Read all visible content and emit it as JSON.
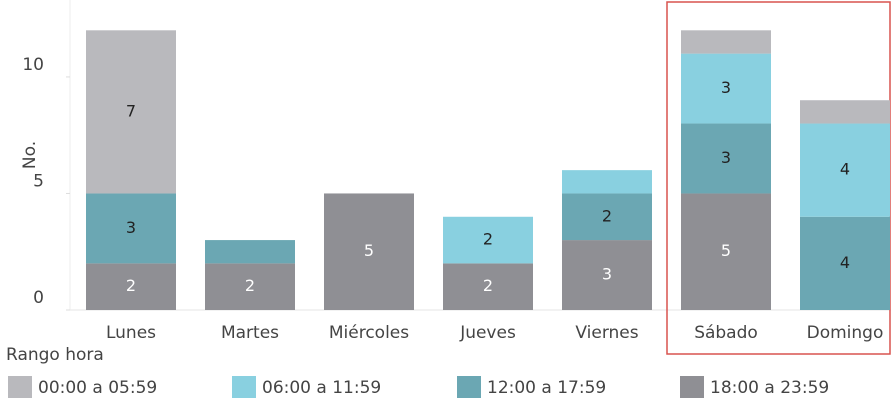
{
  "chart_data": {
    "type": "bar",
    "stacked": true,
    "y_label": "No.",
    "legend_title": "Rango hora",
    "categories": [
      "Lunes",
      "Martes",
      "Miércoles",
      "Jueves",
      "Viernes",
      "Sábado",
      "Domingo"
    ],
    "series": [
      {
        "name": "00:00 a 05:59",
        "color": "#b9b9bd",
        "values": [
          7,
          0,
          0,
          0,
          0,
          1,
          1
        ],
        "value_labels": [
          "7",
          null,
          null,
          null,
          null,
          null,
          null
        ]
      },
      {
        "name": "06:00 a 11:59",
        "color": "#89d0e0",
        "values": [
          0,
          0,
          0,
          2,
          1,
          3,
          4
        ],
        "value_labels": [
          null,
          null,
          null,
          "2",
          null,
          "3",
          "4"
        ]
      },
      {
        "name": "12:00 a 17:59",
        "color": "#6ba7b3",
        "values": [
          3,
          1,
          0,
          0,
          2,
          3,
          4
        ],
        "value_labels": [
          "3",
          null,
          null,
          null,
          "2",
          "3",
          "4"
        ]
      },
      {
        "name": "18:00 a 23:59",
        "color": "#8f8f94",
        "values": [
          2,
          2,
          5,
          2,
          3,
          5,
          0
        ],
        "value_labels": [
          "2",
          "2",
          "5",
          "2",
          "3",
          "5",
          null
        ]
      }
    ],
    "ylim": [
      0,
      13.3
    ],
    "yticks": [
      0,
      5,
      10
    ],
    "grid": false,
    "legend": "bottom"
  }
}
